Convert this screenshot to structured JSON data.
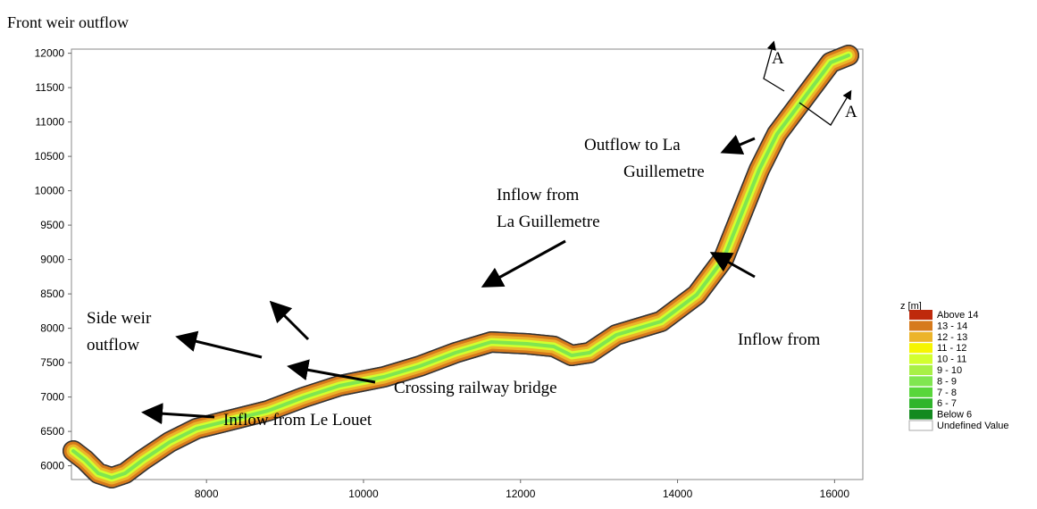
{
  "chart_data": {
    "type": "map",
    "title": "Front weir outflow",
    "xlim": [
      6280,
      16360
    ],
    "ylim": [
      5800,
      12060
    ],
    "xticks": [
      8000,
      10000,
      12000,
      14000,
      16000
    ],
    "yticks": [
      6000,
      6500,
      7000,
      7500,
      8000,
      8500,
      9000,
      9500,
      10000,
      10500,
      11000,
      11500,
      12000
    ],
    "annotations": [
      {
        "lines": [
          "A"
        ]
      },
      {
        "lines": [
          "A"
        ]
      },
      {
        "lines": [
          "Outflow to La",
          "Guillemetre"
        ]
      },
      {
        "lines": [
          "Inflow from",
          "La Guillemetre"
        ]
      },
      {
        "lines": [
          "Side weir",
          "outflow"
        ]
      },
      {
        "lines": [
          "Crossing railway bridge"
        ]
      },
      {
        "lines": [
          "Inflow from Le Louet"
        ]
      },
      {
        "lines": [
          "Inflow from"
        ]
      }
    ],
    "legend": {
      "title": "z [m]",
      "items": [
        {
          "name": "Above 14",
          "color": "#bf2a0c"
        },
        {
          "name": "13 - 14",
          "color": "#d67a1c"
        },
        {
          "name": "12 - 13",
          "color": "#ecb42a"
        },
        {
          "name": "11 - 12",
          "color": "#f6f500"
        },
        {
          "name": "10 - 11",
          "color": "#d2ff2e"
        },
        {
          "name": "9 - 10",
          "color": "#a8f046"
        },
        {
          "name": "8 - 9",
          "color": "#80e650"
        },
        {
          "name": "7 - 8",
          "color": "#58d63a"
        },
        {
          "name": "6 - 7",
          "color": "#2fb52b"
        },
        {
          "name": "Below 6",
          "color": "#128a1f"
        },
        {
          "name": "Undefined Value",
          "color": "#ffffff"
        }
      ]
    }
  }
}
